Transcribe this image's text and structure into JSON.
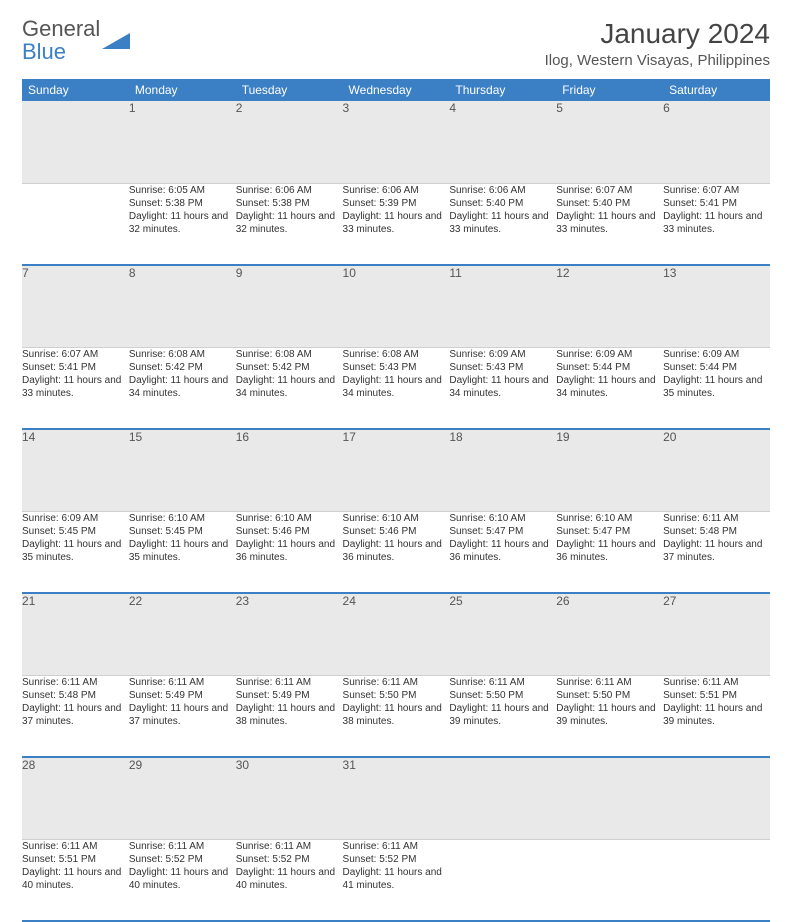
{
  "brand": {
    "word1": "General",
    "word2": "Blue",
    "logo_color": "#3b7fc4"
  },
  "title": "January 2024",
  "location": "Ilog, Western Visayas, Philippines",
  "style": {
    "page_bg": "#ffffff",
    "header_bg": "#3b7fc4",
    "header_fg": "#ffffff",
    "daynum_bg": "#e9e9e9",
    "daynum_fg": "#555555",
    "body_fg": "#333333",
    "row_divider": "#3b7fc4",
    "font_family": "Arial",
    "title_fontsize": 28,
    "header_fontsize": 12,
    "daynum_fontsize": 12,
    "cell_fontsize": 10
  },
  "weekdays": [
    "Sunday",
    "Monday",
    "Tuesday",
    "Wednesday",
    "Thursday",
    "Friday",
    "Saturday"
  ],
  "weeks": [
    {
      "nums": [
        "",
        "1",
        "2",
        "3",
        "4",
        "5",
        "6"
      ],
      "cells": [
        null,
        {
          "sunrise": "6:05 AM",
          "sunset": "5:38 PM",
          "daylight": "11 hours and 32 minutes."
        },
        {
          "sunrise": "6:06 AM",
          "sunset": "5:38 PM",
          "daylight": "11 hours and 32 minutes."
        },
        {
          "sunrise": "6:06 AM",
          "sunset": "5:39 PM",
          "daylight": "11 hours and 33 minutes."
        },
        {
          "sunrise": "6:06 AM",
          "sunset": "5:40 PM",
          "daylight": "11 hours and 33 minutes."
        },
        {
          "sunrise": "6:07 AM",
          "sunset": "5:40 PM",
          "daylight": "11 hours and 33 minutes."
        },
        {
          "sunrise": "6:07 AM",
          "sunset": "5:41 PM",
          "daylight": "11 hours and 33 minutes."
        }
      ]
    },
    {
      "nums": [
        "7",
        "8",
        "9",
        "10",
        "11",
        "12",
        "13"
      ],
      "cells": [
        {
          "sunrise": "6:07 AM",
          "sunset": "5:41 PM",
          "daylight": "11 hours and 33 minutes."
        },
        {
          "sunrise": "6:08 AM",
          "sunset": "5:42 PM",
          "daylight": "11 hours and 34 minutes."
        },
        {
          "sunrise": "6:08 AM",
          "sunset": "5:42 PM",
          "daylight": "11 hours and 34 minutes."
        },
        {
          "sunrise": "6:08 AM",
          "sunset": "5:43 PM",
          "daylight": "11 hours and 34 minutes."
        },
        {
          "sunrise": "6:09 AM",
          "sunset": "5:43 PM",
          "daylight": "11 hours and 34 minutes."
        },
        {
          "sunrise": "6:09 AM",
          "sunset": "5:44 PM",
          "daylight": "11 hours and 34 minutes."
        },
        {
          "sunrise": "6:09 AM",
          "sunset": "5:44 PM",
          "daylight": "11 hours and 35 minutes."
        }
      ]
    },
    {
      "nums": [
        "14",
        "15",
        "16",
        "17",
        "18",
        "19",
        "20"
      ],
      "cells": [
        {
          "sunrise": "6:09 AM",
          "sunset": "5:45 PM",
          "daylight": "11 hours and 35 minutes."
        },
        {
          "sunrise": "6:10 AM",
          "sunset": "5:45 PM",
          "daylight": "11 hours and 35 minutes."
        },
        {
          "sunrise": "6:10 AM",
          "sunset": "5:46 PM",
          "daylight": "11 hours and 36 minutes."
        },
        {
          "sunrise": "6:10 AM",
          "sunset": "5:46 PM",
          "daylight": "11 hours and 36 minutes."
        },
        {
          "sunrise": "6:10 AM",
          "sunset": "5:47 PM",
          "daylight": "11 hours and 36 minutes."
        },
        {
          "sunrise": "6:10 AM",
          "sunset": "5:47 PM",
          "daylight": "11 hours and 36 minutes."
        },
        {
          "sunrise": "6:11 AM",
          "sunset": "5:48 PM",
          "daylight": "11 hours and 37 minutes."
        }
      ]
    },
    {
      "nums": [
        "21",
        "22",
        "23",
        "24",
        "25",
        "26",
        "27"
      ],
      "cells": [
        {
          "sunrise": "6:11 AM",
          "sunset": "5:48 PM",
          "daylight": "11 hours and 37 minutes."
        },
        {
          "sunrise": "6:11 AM",
          "sunset": "5:49 PM",
          "daylight": "11 hours and 37 minutes."
        },
        {
          "sunrise": "6:11 AM",
          "sunset": "5:49 PM",
          "daylight": "11 hours and 38 minutes."
        },
        {
          "sunrise": "6:11 AM",
          "sunset": "5:50 PM",
          "daylight": "11 hours and 38 minutes."
        },
        {
          "sunrise": "6:11 AM",
          "sunset": "5:50 PM",
          "daylight": "11 hours and 39 minutes."
        },
        {
          "sunrise": "6:11 AM",
          "sunset": "5:50 PM",
          "daylight": "11 hours and 39 minutes."
        },
        {
          "sunrise": "6:11 AM",
          "sunset": "5:51 PM",
          "daylight": "11 hours and 39 minutes."
        }
      ]
    },
    {
      "nums": [
        "28",
        "29",
        "30",
        "31",
        "",
        "",
        ""
      ],
      "cells": [
        {
          "sunrise": "6:11 AM",
          "sunset": "5:51 PM",
          "daylight": "11 hours and 40 minutes."
        },
        {
          "sunrise": "6:11 AM",
          "sunset": "5:52 PM",
          "daylight": "11 hours and 40 minutes."
        },
        {
          "sunrise": "6:11 AM",
          "sunset": "5:52 PM",
          "daylight": "11 hours and 40 minutes."
        },
        {
          "sunrise": "6:11 AM",
          "sunset": "5:52 PM",
          "daylight": "11 hours and 41 minutes."
        },
        null,
        null,
        null
      ]
    }
  ],
  "labels": {
    "sunrise": "Sunrise:",
    "sunset": "Sunset:",
    "daylight": "Daylight:"
  }
}
